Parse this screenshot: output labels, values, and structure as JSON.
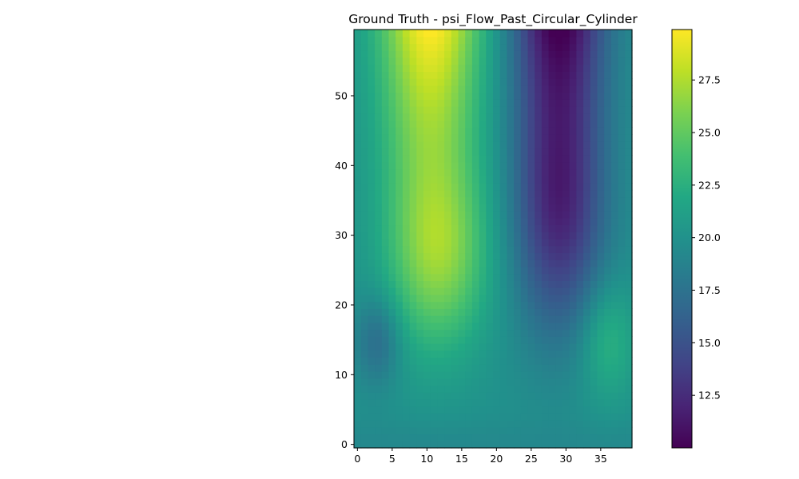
{
  "chart_data": {
    "type": "heatmap",
    "title": "Ground Truth - psi_Flow_Past_Circular_Cylinder",
    "xlabel": "",
    "ylabel": "",
    "grid": false,
    "colormap": "viridis",
    "x_range": [
      -0.5,
      39.5
    ],
    "y_range": [
      -0.5,
      59.5
    ],
    "columns": 40,
    "rows": 60,
    "x_ticks": [
      0,
      5,
      10,
      15,
      20,
      25,
      30,
      35
    ],
    "x_tick_labels": [
      "0",
      "5",
      "10",
      "15",
      "20",
      "25",
      "30",
      "35"
    ],
    "y_ticks": [
      0,
      10,
      20,
      30,
      40,
      50
    ],
    "y_tick_labels": [
      "0",
      "10",
      "20",
      "30",
      "40",
      "50"
    ],
    "colorbar": {
      "range": [
        10.0,
        29.9
      ],
      "ticks": [
        12.5,
        15.0,
        17.5,
        20.0,
        22.5,
        25.0,
        27.5
      ],
      "tick_labels": [
        "12.5",
        "15.0",
        "17.5",
        "20.0",
        "22.5",
        "25.0",
        "27.5"
      ],
      "placement": "right"
    },
    "field_description": {
      "baseline_value": 19.9,
      "features": [
        {
          "kind": "high",
          "center_x": 10,
          "center_y": 59,
          "peak": 29.9
        },
        {
          "kind": "low",
          "center_x": 29,
          "center_y": 59,
          "peak": 10.0
        },
        {
          "kind": "low",
          "center_x": 3,
          "center_y": 15,
          "peak": 17.0
        },
        {
          "kind": "high",
          "center_x": 36,
          "center_y": 15,
          "peak": 22.8
        }
      ]
    }
  }
}
